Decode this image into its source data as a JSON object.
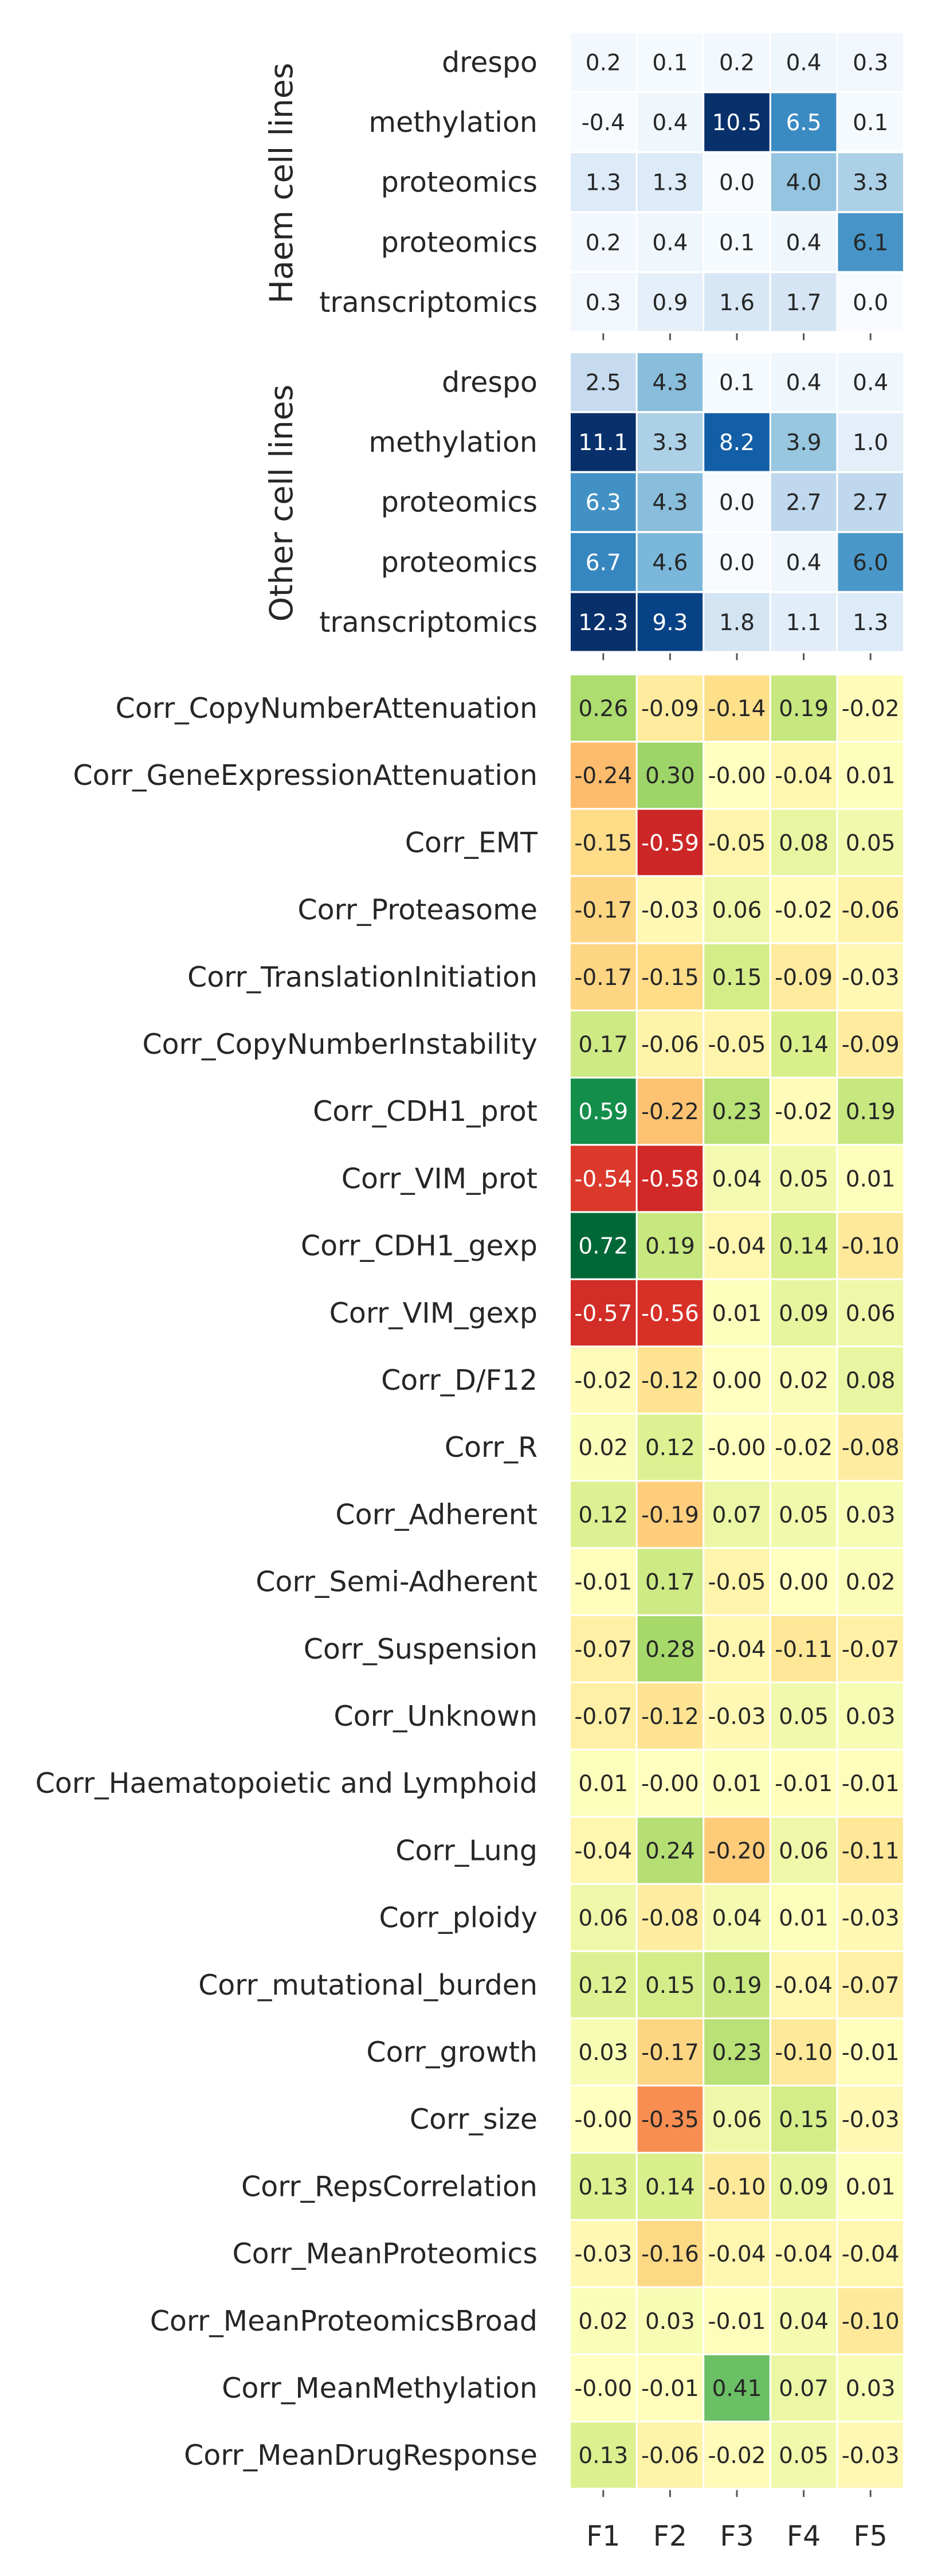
{
  "chart_data": [
    {
      "type": "heatmap",
      "group_label": "Haem cell lines",
      "x": [
        "F1",
        "F2",
        "F3",
        "F4",
        "F5"
      ],
      "y": [
        "drespo",
        "methylation",
        "proteomics",
        "proteomics",
        "transcriptomics"
      ],
      "values": [
        [
          0.2,
          0.1,
          0.2,
          0.4,
          0.3
        ],
        [
          -0.4,
          0.4,
          10.5,
          6.5,
          0.1
        ],
        [
          1.3,
          1.3,
          0.0,
          4.0,
          3.3
        ],
        [
          0.2,
          0.4,
          0.1,
          0.4,
          6.1
        ],
        [
          0.3,
          0.9,
          1.6,
          1.7,
          0.0
        ]
      ],
      "value_labels": [
        [
          "0.2",
          "0.1",
          "0.2",
          "0.4",
          "0.3"
        ],
        [
          "-0.4",
          "0.4",
          "10.5",
          "6.5",
          "0.1"
        ],
        [
          "1.3",
          "1.3",
          "0.0",
          "4.0",
          "3.3"
        ],
        [
          "0.2",
          "0.4",
          "0.1",
          "0.4",
          "6.1"
        ],
        [
          "0.3",
          "0.9",
          "1.6",
          "1.7",
          "0.0"
        ]
      ],
      "colormap": "Blues",
      "vmin": 0,
      "vmax": 10
    },
    {
      "type": "heatmap",
      "group_label": "Other cell lines",
      "x": [
        "F1",
        "F2",
        "F3",
        "F4",
        "F5"
      ],
      "y": [
        "drespo",
        "methylation",
        "proteomics",
        "proteomics",
        "transcriptomics"
      ],
      "values": [
        [
          2.5,
          4.3,
          0.1,
          0.4,
          0.4
        ],
        [
          11.1,
          3.3,
          8.2,
          3.9,
          1.0
        ],
        [
          6.3,
          4.3,
          0.0,
          2.7,
          2.7
        ],
        [
          6.7,
          4.6,
          0.0,
          0.4,
          6.0
        ],
        [
          12.3,
          9.3,
          1.8,
          1.1,
          1.3
        ]
      ],
      "value_labels": [
        [
          "2.5",
          "4.3",
          "0.1",
          "0.4",
          "0.4"
        ],
        [
          "11.1",
          "3.3",
          "8.2",
          "3.9",
          "1.0"
        ],
        [
          "6.3",
          "4.3",
          "0.0",
          "2.7",
          "2.7"
        ],
        [
          "6.7",
          "4.6",
          "0.0",
          "0.4",
          "6.0"
        ],
        [
          "12.3",
          "9.3",
          "1.8",
          "1.1",
          "1.3"
        ]
      ],
      "colormap": "Blues",
      "vmin": 0,
      "vmax": 10
    },
    {
      "type": "heatmap",
      "x": [
        "F1",
        "F2",
        "F3",
        "F4",
        "F5"
      ],
      "y": [
        "Corr_CopyNumberAttenuation",
        "Corr_GeneExpressionAttenuation",
        "Corr_EMT",
        "Corr_Proteasome",
        "Corr_TranslationInitiation",
        "Corr_CopyNumberInstability",
        "Corr_CDH1_prot",
        "Corr_VIM_prot",
        "Corr_CDH1_gexp",
        "Corr_VIM_gexp",
        "Corr_D/F12",
        "Corr_R",
        "Corr_Adherent",
        "Corr_Semi-Adherent",
        "Corr_Suspension",
        "Corr_Unknown",
        "Corr_Haematopoietic and Lymphoid",
        "Corr_Lung",
        "Corr_ploidy",
        "Corr_mutational_burden",
        "Corr_growth",
        "Corr_size",
        "Corr_RepsCorrelation",
        "Corr_MeanProteomics",
        "Corr_MeanProteomicsBroad",
        "Corr_MeanMethylation",
        "Corr_MeanDrugResponse"
      ],
      "values": [
        [
          0.26,
          -0.09,
          -0.14,
          0.19,
          -0.02
        ],
        [
          -0.24,
          0.3,
          -0.0,
          -0.04,
          0.01
        ],
        [
          -0.15,
          -0.59,
          -0.05,
          0.08,
          0.05
        ],
        [
          -0.17,
          -0.03,
          0.06,
          -0.02,
          -0.06
        ],
        [
          -0.17,
          -0.15,
          0.15,
          -0.09,
          -0.03
        ],
        [
          0.17,
          -0.06,
          -0.05,
          0.14,
          -0.09
        ],
        [
          0.59,
          -0.22,
          0.23,
          -0.02,
          0.19
        ],
        [
          -0.54,
          -0.58,
          0.04,
          0.05,
          0.01
        ],
        [
          0.72,
          0.19,
          -0.04,
          0.14,
          -0.1
        ],
        [
          -0.57,
          -0.56,
          0.01,
          0.09,
          0.06
        ],
        [
          -0.02,
          -0.12,
          0.0,
          0.02,
          0.08
        ],
        [
          0.02,
          0.12,
          -0.0,
          -0.02,
          -0.08
        ],
        [
          0.12,
          -0.19,
          0.07,
          0.05,
          0.03
        ],
        [
          -0.01,
          0.17,
          -0.05,
          0.0,
          0.02
        ],
        [
          -0.07,
          0.28,
          -0.04,
          -0.11,
          -0.07
        ],
        [
          -0.07,
          -0.12,
          -0.03,
          0.05,
          0.03
        ],
        [
          0.01,
          -0.0,
          0.01,
          -0.01,
          -0.01
        ],
        [
          -0.04,
          0.24,
          -0.2,
          0.06,
          -0.11
        ],
        [
          0.06,
          -0.08,
          0.04,
          0.01,
          -0.03
        ],
        [
          0.12,
          0.15,
          0.19,
          -0.04,
          -0.07
        ],
        [
          0.03,
          -0.17,
          0.23,
          -0.1,
          -0.01
        ],
        [
          -0.0,
          -0.35,
          0.06,
          0.15,
          -0.03
        ],
        [
          0.13,
          0.14,
          -0.1,
          0.09,
          0.01
        ],
        [
          -0.03,
          -0.16,
          -0.04,
          -0.04,
          -0.04
        ],
        [
          0.02,
          0.03,
          -0.01,
          0.04,
          -0.1
        ],
        [
          -0.0,
          -0.01,
          0.41,
          0.07,
          0.03
        ],
        [
          0.13,
          -0.06,
          -0.02,
          0.05,
          -0.03
        ]
      ],
      "value_labels": [
        [
          "0.26",
          "-0.09",
          "-0.14",
          "0.19",
          "-0.02"
        ],
        [
          "-0.24",
          "0.30",
          "-0.00",
          "-0.04",
          "0.01"
        ],
        [
          "-0.15",
          "-0.59",
          "-0.05",
          "0.08",
          "0.05"
        ],
        [
          "-0.17",
          "-0.03",
          "0.06",
          "-0.02",
          "-0.06"
        ],
        [
          "-0.17",
          "-0.15",
          "0.15",
          "-0.09",
          "-0.03"
        ],
        [
          "0.17",
          "-0.06",
          "-0.05",
          "0.14",
          "-0.09"
        ],
        [
          "0.59",
          "-0.22",
          "0.23",
          "-0.02",
          "0.19"
        ],
        [
          "-0.54",
          "-0.58",
          "0.04",
          "0.05",
          "0.01"
        ],
        [
          "0.72",
          "0.19",
          "-0.04",
          "0.14",
          "-0.10"
        ],
        [
          "-0.57",
          "-0.56",
          "0.01",
          "0.09",
          "0.06"
        ],
        [
          "-0.02",
          "-0.12",
          "0.00",
          "0.02",
          "0.08"
        ],
        [
          "0.02",
          "0.12",
          "-0.00",
          "-0.02",
          "-0.08"
        ],
        [
          "0.12",
          "-0.19",
          "0.07",
          "0.05",
          "0.03"
        ],
        [
          "-0.01",
          "0.17",
          "-0.05",
          "0.00",
          "0.02"
        ],
        [
          "-0.07",
          "0.28",
          "-0.04",
          "-0.11",
          "-0.07"
        ],
        [
          "-0.07",
          "-0.12",
          "-0.03",
          "0.05",
          "0.03"
        ],
        [
          "0.01",
          "-0.00",
          "0.01",
          "-0.01",
          "-0.01"
        ],
        [
          "-0.04",
          "0.24",
          "-0.20",
          "0.06",
          "-0.11"
        ],
        [
          "0.06",
          "-0.08",
          "0.04",
          "0.01",
          "-0.03"
        ],
        [
          "0.12",
          "0.15",
          "0.19",
          "-0.04",
          "-0.07"
        ],
        [
          "0.03",
          "-0.17",
          "0.23",
          "-0.10",
          "-0.01"
        ],
        [
          "-0.00",
          "-0.35",
          "0.06",
          "0.15",
          "-0.03"
        ],
        [
          "0.13",
          "0.14",
          "-0.10",
          "0.09",
          "0.01"
        ],
        [
          "-0.03",
          "-0.16",
          "-0.04",
          "-0.04",
          "-0.04"
        ],
        [
          "0.02",
          "0.03",
          "-0.01",
          "0.04",
          "-0.10"
        ],
        [
          "-0.00",
          "-0.01",
          "0.41",
          "0.07",
          "0.03"
        ],
        [
          "0.13",
          "-0.06",
          "-0.02",
          "0.05",
          "-0.03"
        ]
      ],
      "colormap": "RdYlGn",
      "vmin": -0.7,
      "vmax": 0.7
    }
  ],
  "x_tick_labels": [
    "F1",
    "F2",
    "F3",
    "F4",
    "F5"
  ],
  "grid": false,
  "legend": "none"
}
